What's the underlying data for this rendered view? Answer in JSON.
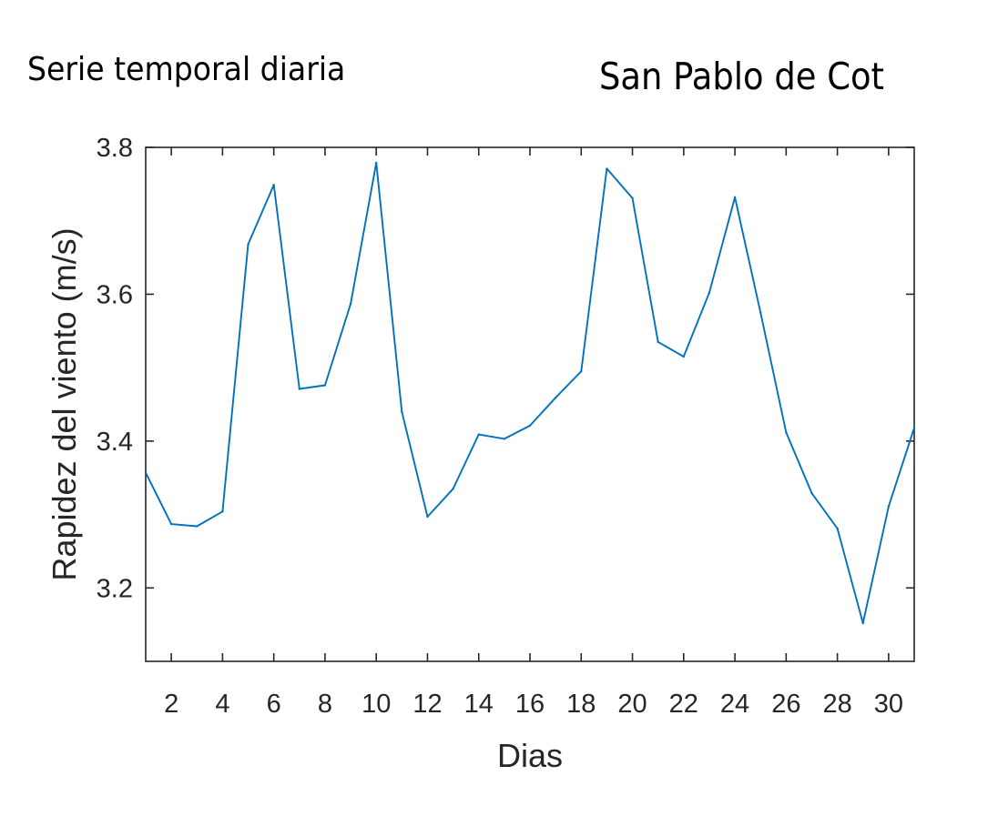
{
  "header": {
    "subtitle": "Serie temporal diaria",
    "station": "San Pablo de Cot"
  },
  "chart_data": {
    "type": "line",
    "xlabel": "Dias",
    "ylabel": "Rapidez del viento (m/s)",
    "xlim": [
      1,
      31
    ],
    "ylim": [
      3.1,
      3.8
    ],
    "xticks": [
      2,
      4,
      6,
      8,
      10,
      12,
      14,
      16,
      18,
      20,
      22,
      24,
      26,
      28,
      30
    ],
    "yticks": [
      3.2,
      3.4,
      3.6,
      3.8
    ],
    "line_color": "#0072BD",
    "grid": false,
    "series": [
      {
        "x": [
          1,
          2,
          3,
          4,
          5,
          6,
          7,
          8,
          9,
          10,
          11,
          12,
          13,
          14,
          15,
          16,
          17,
          18,
          19,
          20,
          21,
          22,
          23,
          24,
          25,
          26,
          27,
          28,
          29,
          30,
          31
        ],
        "values": [
          3.357,
          3.287,
          3.284,
          3.304,
          3.668,
          3.749,
          3.471,
          3.476,
          3.587,
          3.779,
          3.44,
          3.297,
          3.335,
          3.409,
          3.403,
          3.421,
          3.459,
          3.495,
          3.771,
          3.731,
          3.535,
          3.515,
          3.602,
          3.732,
          3.575,
          3.412,
          3.329,
          3.281,
          3.152,
          3.311,
          3.418
        ]
      }
    ]
  }
}
